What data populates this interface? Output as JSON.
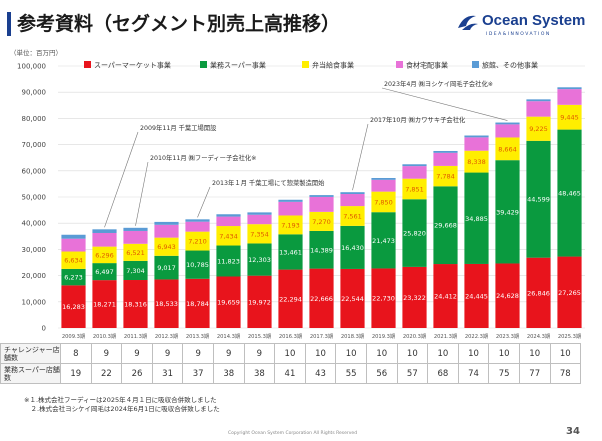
{
  "page": {
    "title": "参考資料（セグメント別売上高推移）",
    "unit_label": "（単位：百万円）",
    "page_number": "34",
    "footer": "Copyright Ocean System Corporation All Rights Reserved",
    "notes": [
      "※１.株式会社フーディーは2025年４月１日に吸収合併致しました",
      "　２.株式会社ヨシケイ岡毛は2024年6月1日に吸収合併致しました"
    ]
  },
  "logo": {
    "name": "Ocean System",
    "tagline": "IDEA&INNOVATION",
    "color": "#1a3f8f"
  },
  "chart_data": {
    "type": "bar",
    "stacked": true,
    "categories": [
      "2009.3期",
      "2010.3期",
      "2011.3期",
      "2012.3期",
      "2013.3期",
      "2014.3期",
      "2015.3期",
      "2016.3期",
      "2017.3期",
      "2018.3期",
      "2019.3期",
      "2020.3期",
      "2021.3期",
      "2022.3期",
      "2023.3期",
      "2024.3期",
      "2025.3期"
    ],
    "ylim": [
      0,
      100000
    ],
    "yticks": [
      "0",
      "10,000",
      "20,000",
      "30,000",
      "40,000",
      "50,000",
      "60,000",
      "70,000",
      "80,000",
      "90,000",
      "100,000"
    ],
    "gridlines": true,
    "series": [
      {
        "name": "スーパーマーケット事業",
        "color": "#e8141c",
        "label_color": "#ffffff",
        "values": [
          16283,
          18271,
          18316,
          18533,
          18784,
          19659,
          19972,
          22294,
          22666,
          22544,
          22730,
          23322,
          24412,
          24445,
          24628,
          26846,
          27265
        ],
        "labels": [
          "16,283",
          "18,271",
          "18,316",
          "18,533",
          "18,784",
          "19,659",
          "19,972",
          "22,294",
          "22,666",
          "22,544",
          "22,730",
          "23,322",
          "24,412",
          "24,445",
          "24,628",
          "26,846",
          "27,265"
        ]
      },
      {
        "name": "業務スーパー事業",
        "color": "#0a9a3f",
        "label_color": "#ffffff",
        "values": [
          6273,
          6497,
          7304,
          9017,
          10785,
          11823,
          12303,
          13461,
          14389,
          16430,
          21473,
          25820,
          29668,
          34885,
          39429,
          44599,
          48465
        ],
        "labels": [
          "6,273",
          "6,497",
          "7,304",
          "9,017",
          "10,785",
          "11,823",
          "12,303",
          "13,461",
          "14,389",
          "16,430",
          "21,473",
          "25,820",
          "29,668",
          "34,885",
          "39,429",
          "44,599",
          "48,465"
        ]
      },
      {
        "name": "弁当給食事業",
        "color": "#ffee00",
        "label_color": "#e05a00",
        "values": [
          6634,
          6296,
          6521,
          6943,
          7210,
          7434,
          7354,
          7193,
          7270,
          7561,
          7850,
          7851,
          7784,
          8338,
          8664,
          9225,
          9445
        ],
        "labels": [
          "6,634",
          "6,296",
          "6,521",
          "6,943",
          "7,210",
          "7,434",
          "7,354",
          "7,193",
          "7,270",
          "7,561",
          "7,850",
          "7,851",
          "7,784",
          "8,338",
          "8,664",
          "9,225",
          "9,445"
        ]
      },
      {
        "name": "食材宅配事業",
        "color": "#e872d8",
        "label_color": "#ffffff",
        "values": [
          4900,
          5200,
          4900,
          4900,
          3800,
          3600,
          3600,
          5200,
          5700,
          4600,
          4500,
          4800,
          5000,
          5100,
          5000,
          5900,
          6000
        ],
        "labels": []
      },
      {
        "name": "旅館、その他事業",
        "color": "#5a9bd5",
        "label_color": "#ffffff",
        "values": [
          1500,
          1400,
          1200,
          1100,
          900,
          900,
          900,
          800,
          700,
          700,
          700,
          700,
          700,
          700,
          700,
          700,
          700
        ],
        "labels": []
      }
    ],
    "annotations": [
      {
        "text": "2009年11月 千葉工場開設",
        "category_index": 1
      },
      {
        "text": "2010年11月 ㈱フーディー子会社化※",
        "category_index": 2
      },
      {
        "text": "2013年１月 千葉工場にて惣菜製造開始",
        "category_index": 4
      },
      {
        "text": "2017年10月 ㈱カワサキ子会社化",
        "category_index": 9
      },
      {
        "text": "2023年4月 ㈱ヨシケイ岡毛子会社化※",
        "category_index": 14
      }
    ]
  },
  "store_table": {
    "rows": [
      {
        "label": "チャレンジャー店舗数",
        "values": [
          "8",
          "9",
          "9",
          "9",
          "9",
          "9",
          "9",
          "10",
          "10",
          "10",
          "10",
          "10",
          "10",
          "10",
          "10",
          "10",
          "10"
        ]
      },
      {
        "label": "業務スーパー店舗数",
        "values": [
          "19",
          "22",
          "26",
          "31",
          "37",
          "38",
          "38",
          "41",
          "43",
          "55",
          "56",
          "57",
          "68",
          "74",
          "75",
          "77",
          "78"
        ]
      }
    ]
  }
}
